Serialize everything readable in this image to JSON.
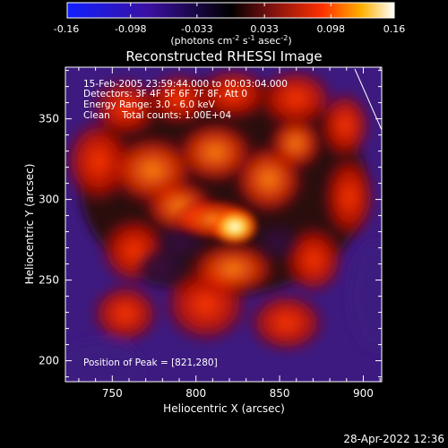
{
  "colorbar": {
    "ticks": [
      "-0.16",
      "-0.098",
      "-0.033",
      "0.033",
      "0.098",
      "0.16"
    ],
    "unit_label": "(photons cm",
    "unit_exp1": "-2",
    "unit_mid": " s",
    "unit_exp2": "-1",
    "unit_tail": " asec",
    "unit_exp3": "-2",
    "unit_close": ")",
    "min": -0.16,
    "max": 0.16
  },
  "chart_data": {
    "type": "heatmap",
    "title": "Reconstructed RHESSI Image",
    "xlabel": "Heliocentric X (arcsec)",
    "ylabel": "Heliocentric Y (arcsec)",
    "xlim": [
      722,
      911
    ],
    "ylim": [
      187,
      382
    ],
    "xticks": [
      750,
      800,
      850,
      900
    ],
    "yticks": [
      200,
      250,
      300,
      350
    ],
    "peak": [
      821,
      280
    ],
    "annotations": [
      "15-Feb-2005 23:59:44.000 to 00:03:04.000",
      "Detectors: 3F 4F 5F 6F 7F 8F, Att 0",
      "Energy Range: 3.0 - 6.0 keV",
      "Clean    Total counts: 1.00E+04",
      "Position of Peak = [821,280]"
    ]
  },
  "footer": {
    "date": "28-Apr-2022 12:36"
  },
  "colors": {
    "background": "#000000",
    "foreground": "#ffffff"
  }
}
